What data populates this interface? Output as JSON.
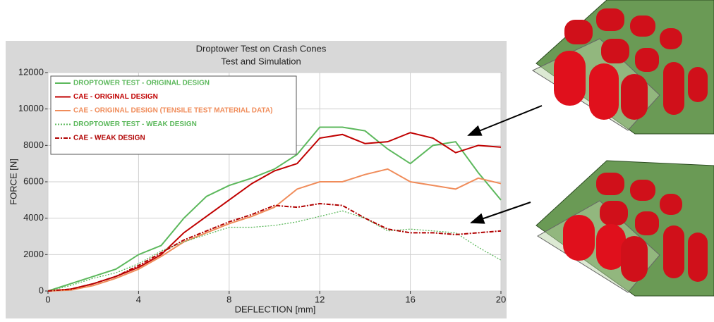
{
  "chart_data": {
    "type": "line",
    "title": "Droptower Test on Crash Cones",
    "subtitle": "Test and Simulation",
    "x_label": "DEFLECTION [mm]",
    "y_label": "FORCE [N]",
    "x": [
      0,
      1,
      2,
      3,
      4,
      5,
      6,
      7,
      8,
      9,
      10,
      11,
      12,
      13,
      14,
      15,
      16,
      17,
      18,
      19,
      20
    ],
    "xlim": [
      0,
      20
    ],
    "xticks": [
      0,
      4,
      8,
      12,
      16,
      20
    ],
    "ylim": [
      0,
      12000
    ],
    "yticks": [
      0,
      2000,
      4000,
      6000,
      8000,
      10000,
      12000
    ],
    "grid": true,
    "legend": "upper left",
    "series": [
      {
        "name": "DROPTOWER TEST - ORIGINAL DESIGN",
        "color": "#5cb85c",
        "dash": "solid",
        "values": [
          0,
          400,
          800,
          1200,
          2000,
          2500,
          4000,
          5200,
          5800,
          6200,
          6700,
          7500,
          9000,
          9000,
          8800,
          7800,
          7000,
          8000,
          8200,
          6500,
          5000
        ]
      },
      {
        "name": "CAE - ORIGINAL DESIGN",
        "color": "#c00000",
        "dash": "solid",
        "values": [
          0,
          100,
          400,
          800,
          1300,
          2000,
          3200,
          4100,
          5000,
          5900,
          6600,
          7000,
          8400,
          8600,
          8100,
          8200,
          8700,
          8400,
          7600,
          8000,
          7900
        ]
      },
      {
        "name": "CAE - ORIGINAL DESIGN (TENSILE TEST MATERIAL DATA)",
        "color": "#f08c5a",
        "dash": "solid",
        "values": [
          0,
          50,
          300,
          700,
          1200,
          1900,
          2700,
          3200,
          3700,
          4100,
          4600,
          5600,
          6000,
          6000,
          6400,
          6700,
          6000,
          5800,
          5600,
          6200,
          5900
        ]
      },
      {
        "name": "DROPTOWER TEST - WEAK DESIGN",
        "color": "#5cb85c",
        "dash": "dotted",
        "values": [
          0,
          300,
          700,
          1000,
          1500,
          2200,
          2700,
          3100,
          3500,
          3500,
          3600,
          3800,
          4100,
          4400,
          4000,
          3300,
          3400,
          3300,
          3200,
          2400,
          1700
        ]
      },
      {
        "name": "CAE - WEAK DESIGN",
        "color": "#b00000",
        "dash": "dashdot",
        "values": [
          0,
          100,
          400,
          800,
          1400,
          2100,
          2800,
          3300,
          3800,
          4200,
          4700,
          4600,
          4800,
          4700,
          4000,
          3400,
          3200,
          3200,
          3100,
          3200,
          3300
        ]
      }
    ]
  }
}
